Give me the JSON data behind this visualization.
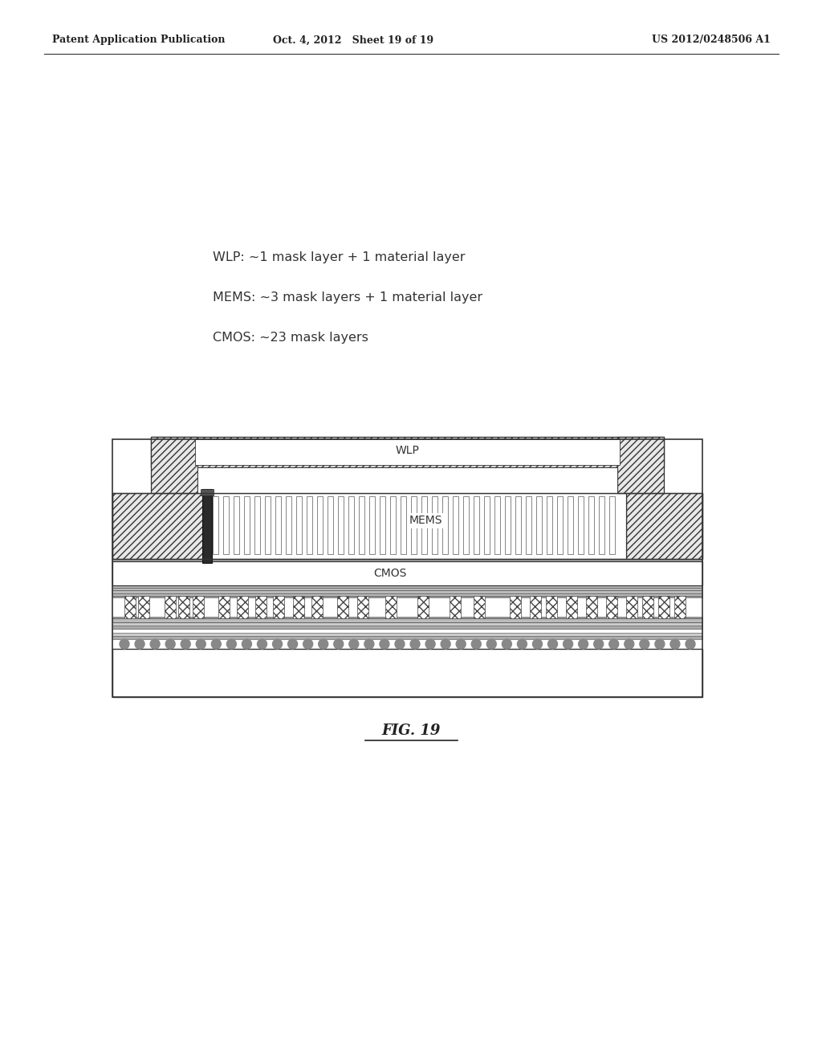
{
  "bg_color": "#ffffff",
  "header_left": "Patent Application Publication",
  "header_mid": "Oct. 4, 2012   Sheet 19 of 19",
  "header_right": "US 2012/0248506 A1",
  "text_lines": [
    "WLP: ~1 mask layer + 1 material layer",
    "MEMS: ~3 mask layers + 1 material layer",
    "CMOS: ~23 mask layers"
  ],
  "fig_label": "FIG. 19",
  "wlp_label": "WLP",
  "mems_label": "MEMS",
  "cmos_label": "CMOS"
}
